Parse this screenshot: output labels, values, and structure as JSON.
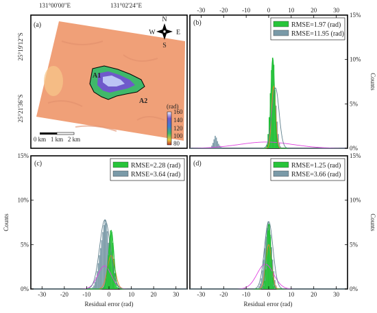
{
  "colors": {
    "green": "#27c43a",
    "steel": "#7a9aa8",
    "green_curve": "#18b830",
    "steel_curve": "#5f7f8c",
    "magenta": "#e040e0",
    "orange": "#e8842a",
    "terrain": "#f0a078"
  },
  "map": {
    "label": "(a)",
    "lon_ticks": [
      "131°00'00\"E",
      "131°02'24\"E"
    ],
    "lat_ticks": [
      "25°19'12\"S",
      "25°21'36\"S"
    ],
    "compass": {
      "n": "N",
      "s": "S",
      "e": "E",
      "w": "W"
    },
    "markers": {
      "a1": "A1",
      "a2": "A2"
    },
    "scalebar": [
      "0 km",
      "1 km",
      "2 km"
    ],
    "colorbar": {
      "unit": "(rad)",
      "ticks": [
        160,
        140,
        120,
        100,
        80
      ]
    },
    "icons": [
      "compass-rose-icon"
    ]
  },
  "axes": {
    "x_ticks": [
      -30,
      -20,
      -10,
      0,
      10,
      20,
      30
    ],
    "y_ticks": [
      "0%",
      "5%",
      "10%",
      "15%"
    ],
    "xlabel": "Residual error (rad)",
    "ylabel": "Counts"
  },
  "chart_data": [
    {
      "type": "bar",
      "panel": "(b)",
      "xlim": [
        -35,
        35
      ],
      "ylim": [
        0,
        15
      ],
      "legend_position": "top-right",
      "series": [
        {
          "name": "RMSE=1.97 (rad)",
          "color": "#27c43a",
          "x": [
            -0.75,
            -0.25,
            0.25,
            0.75,
            1.25,
            1.75,
            2.25,
            2.75,
            3.25,
            3.75,
            4.25
          ],
          "values": [
            0.4,
            1.6,
            3.5,
            6.2,
            8.8,
            10.2,
            9.4,
            6.6,
            3.3,
            1.1,
            0.2
          ]
        },
        {
          "name": "RMSE=11.95 (rad)",
          "color": "#7a9aa8",
          "x": [
            -25.75,
            -25.25,
            -24.75,
            -24.25,
            -23.75,
            -23.25,
            -22.75,
            -22.25,
            -21.75,
            -21.25,
            -20.75,
            0.25,
            0.75,
            1.25,
            1.75,
            2.25,
            2.75,
            3.25,
            3.75,
            4.25,
            4.75,
            5.25
          ],
          "values": [
            0.1,
            0.3,
            0.6,
            1.0,
            1.4,
            1.2,
            0.8,
            0.5,
            0.3,
            0.2,
            0.1,
            0.5,
            1.8,
            4.0,
            5.8,
            6.8,
            6.3,
            4.8,
            3.0,
            1.6,
            0.6,
            0.2
          ]
        }
      ],
      "fit_curves": [
        {
          "color": "#e040e0",
          "mean": -1.2,
          "sigma": 11.95,
          "peak": 0.7
        },
        {
          "color": "#e8842a",
          "mean": 2.2,
          "sigma": 0.9,
          "peak": 7.0
        },
        {
          "color": "#18b830",
          "mean": 1.8,
          "sigma": 0.85,
          "peak": 10.2
        },
        {
          "color": "#5f7f8c",
          "mean": 3.0,
          "sigma": 1.6,
          "peak": 6.8
        }
      ]
    },
    {
      "type": "bar",
      "panel": "(c)",
      "xlim": [
        -35,
        35
      ],
      "ylim": [
        0,
        15
      ],
      "legend_position": "top-right",
      "series": [
        {
          "name": "RMSE=2.28 (rad)",
          "color": "#27c43a",
          "x": [
            -2.25,
            -1.75,
            -1.25,
            -0.75,
            -0.25,
            0.25,
            0.75,
            1.25,
            1.75,
            2.25,
            2.75,
            3.25,
            3.75
          ],
          "values": [
            0.2,
            0.5,
            1.2,
            2.3,
            3.8,
            5.6,
            6.6,
            6.4,
            5.2,
            3.4,
            1.8,
            0.7,
            0.2
          ]
        },
        {
          "name": "RMSE=3.64 (rad)",
          "color": "#7a9aa8",
          "x": [
            -7.75,
            -7.25,
            -6.75,
            -6.25,
            -5.75,
            -5.25,
            -4.75,
            -4.25,
            -3.75,
            -3.25,
            -2.75,
            -2.25,
            -1.75,
            -1.25,
            -0.75,
            -0.25,
            0.25,
            0.75,
            1.25,
            1.75,
            2.25
          ],
          "values": [
            0.1,
            0.2,
            0.4,
            0.8,
            1.3,
            2.0,
            2.9,
            3.8,
            4.6,
            5.5,
            6.4,
            7.2,
            7.8,
            7.4,
            6.5,
            5.2,
            3.8,
            2.5,
            1.4,
            0.6,
            0.2
          ]
        }
      ],
      "fit_curves": [
        {
          "color": "#e040e0",
          "mean": -2.0,
          "sigma": 3.0,
          "peak": 2.6
        },
        {
          "color": "#e8842a",
          "mean": 1.0,
          "sigma": 1.7,
          "peak": 3.8
        },
        {
          "color": "#18b830",
          "mean": 1.0,
          "sigma": 1.2,
          "peak": 6.6
        },
        {
          "color": "#5f7f8c",
          "mean": -1.8,
          "sigma": 2.4,
          "peak": 7.8
        }
      ]
    },
    {
      "type": "bar",
      "panel": "(d)",
      "xlim": [
        -35,
        35
      ],
      "ylim": [
        0,
        15
      ],
      "legend_position": "top-right",
      "series": [
        {
          "name": "RMSE=1.25 (rad)",
          "color": "#27c43a",
          "x": [
            -2.25,
            -1.75,
            -1.25,
            -0.75,
            -0.25,
            0.25,
            0.75,
            1.25,
            1.75,
            2.25
          ],
          "values": [
            0.3,
            0.9,
            2.2,
            4.4,
            6.6,
            7.3,
            5.9,
            3.4,
            1.3,
            0.3
          ]
        },
        {
          "name": "RMSE=3.66 (rad)",
          "color": "#7a9aa8",
          "x": [
            -4.75,
            -4.25,
            -3.75,
            -3.25,
            -2.75,
            -2.25,
            -1.75,
            -1.25,
            -0.75,
            -0.25,
            0.25,
            0.75,
            1.25,
            1.75,
            2.25,
            2.75,
            3.25,
            3.75
          ],
          "values": [
            0.1,
            0.3,
            0.6,
            1.2,
            2.1,
            3.3,
            4.6,
            5.9,
            6.9,
            7.6,
            7.2,
            6.1,
            4.7,
            3.3,
            2.0,
            1.0,
            0.4,
            0.1
          ]
        }
      ],
      "fit_curves": [
        {
          "color": "#e040e0",
          "mean": -1.5,
          "sigma": 3.66,
          "peak": 2.8
        },
        {
          "color": "#e8842a",
          "mean": 0.0,
          "sigma": 1.3,
          "peak": 5.0
        },
        {
          "color": "#18b830",
          "mean": 0.0,
          "sigma": 1.0,
          "peak": 7.3
        },
        {
          "color": "#5f7f8c",
          "mean": 0.0,
          "sigma": 1.9,
          "peak": 7.6
        }
      ]
    }
  ]
}
